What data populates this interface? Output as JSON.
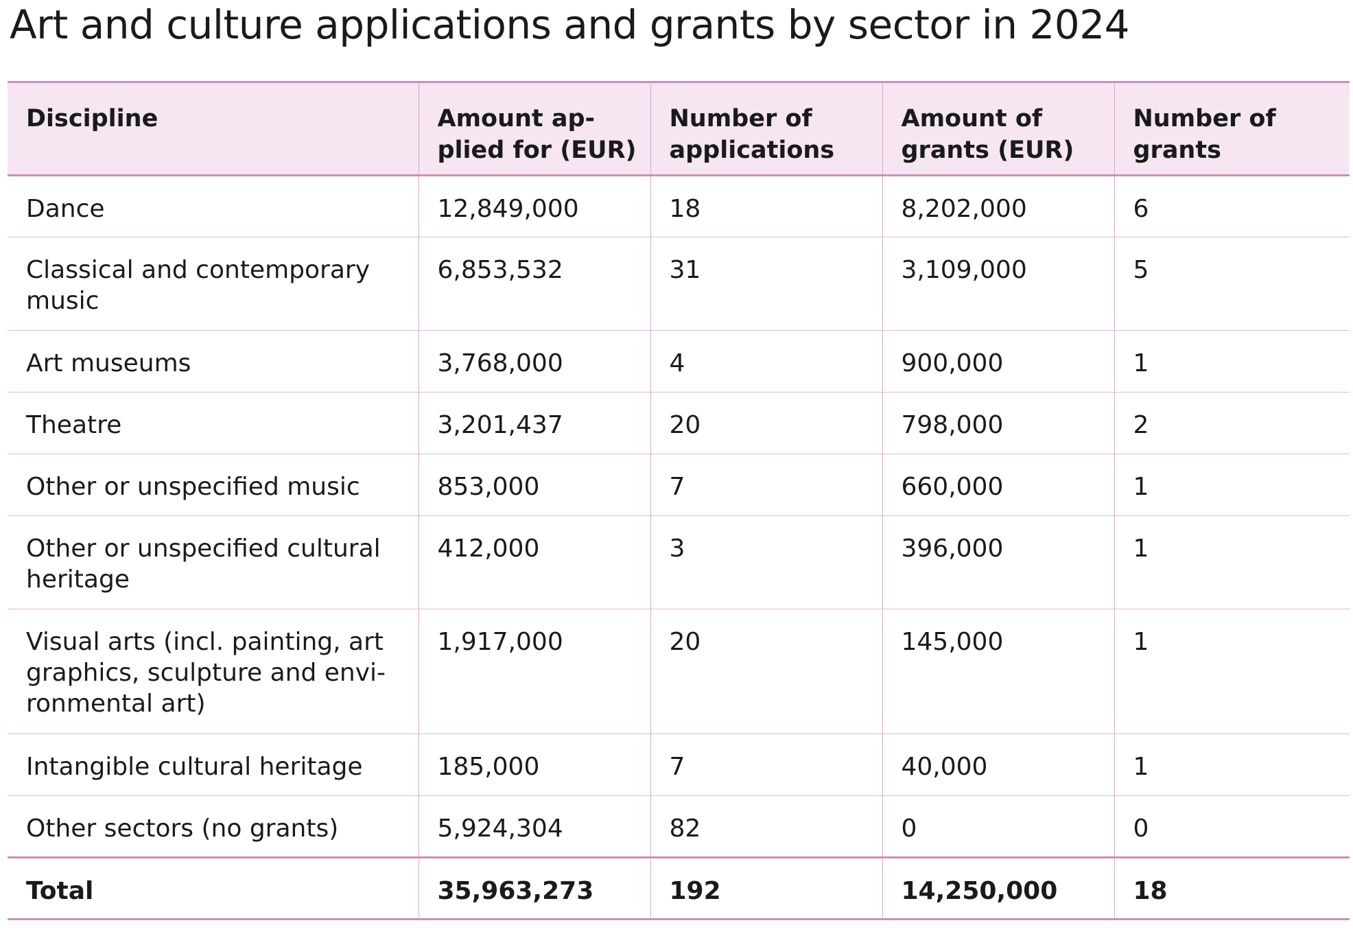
{
  "title": "Art and culture applications and grants by sector in 2024",
  "table": {
    "headers": {
      "discipline": "Discipline",
      "amount_applied": "Amount ap-plied for (EUR)",
      "num_applications": "Number of applications",
      "amount_grants": "Amount of grants (EUR)",
      "num_grants": "Number of grants"
    },
    "rows": [
      {
        "discipline": "Dance",
        "amount_applied": "12,849,000",
        "num_applications": "18",
        "amount_grants": "8,202,000",
        "num_grants": "6"
      },
      {
        "discipline": "Classical and contemporary music",
        "amount_applied": "6,853,532",
        "num_applications": "31",
        "amount_grants": "3,109,000",
        "num_grants": "5"
      },
      {
        "discipline": "Art museums",
        "amount_applied": "3,768,000",
        "num_applications": "4",
        "amount_grants": "900,000",
        "num_grants": "1"
      },
      {
        "discipline": "Theatre",
        "amount_applied": "3,201,437",
        "num_applications": "20",
        "amount_grants": "798,000",
        "num_grants": "2"
      },
      {
        "discipline": "Other or unspecified music",
        "amount_applied": "853,000",
        "num_applications": "7",
        "amount_grants": "660,000",
        "num_grants": "1"
      },
      {
        "discipline": "Other or unspecified cultural heritage",
        "amount_applied": "412,000",
        "num_applications": "3",
        "amount_grants": "396,000",
        "num_grants": "1"
      },
      {
        "discipline": "Visual arts (incl. painting, art graphics, sculpture and envi-ronmental art)",
        "amount_applied": "1,917,000",
        "num_applications": "20",
        "amount_grants": "145,000",
        "num_grants": "1"
      },
      {
        "discipline": "Intangible cultural heritage",
        "amount_applied": "185,000",
        "num_applications": "7",
        "amount_grants": "40,000",
        "num_grants": "1"
      },
      {
        "discipline": "Other sectors (no grants)",
        "amount_applied": "5,924,304",
        "num_applications": "82",
        "amount_grants": "0",
        "num_grants": "0"
      }
    ],
    "total": {
      "discipline": "Total",
      "amount_applied": "35,963,273",
      "num_applications": "192",
      "amount_grants": "14,250,000",
      "num_grants": "18"
    }
  },
  "colors": {
    "header_background": "#f5e6f1",
    "rule_strong": "#cc8fbb",
    "rule_light": "#e2b8d6"
  }
}
